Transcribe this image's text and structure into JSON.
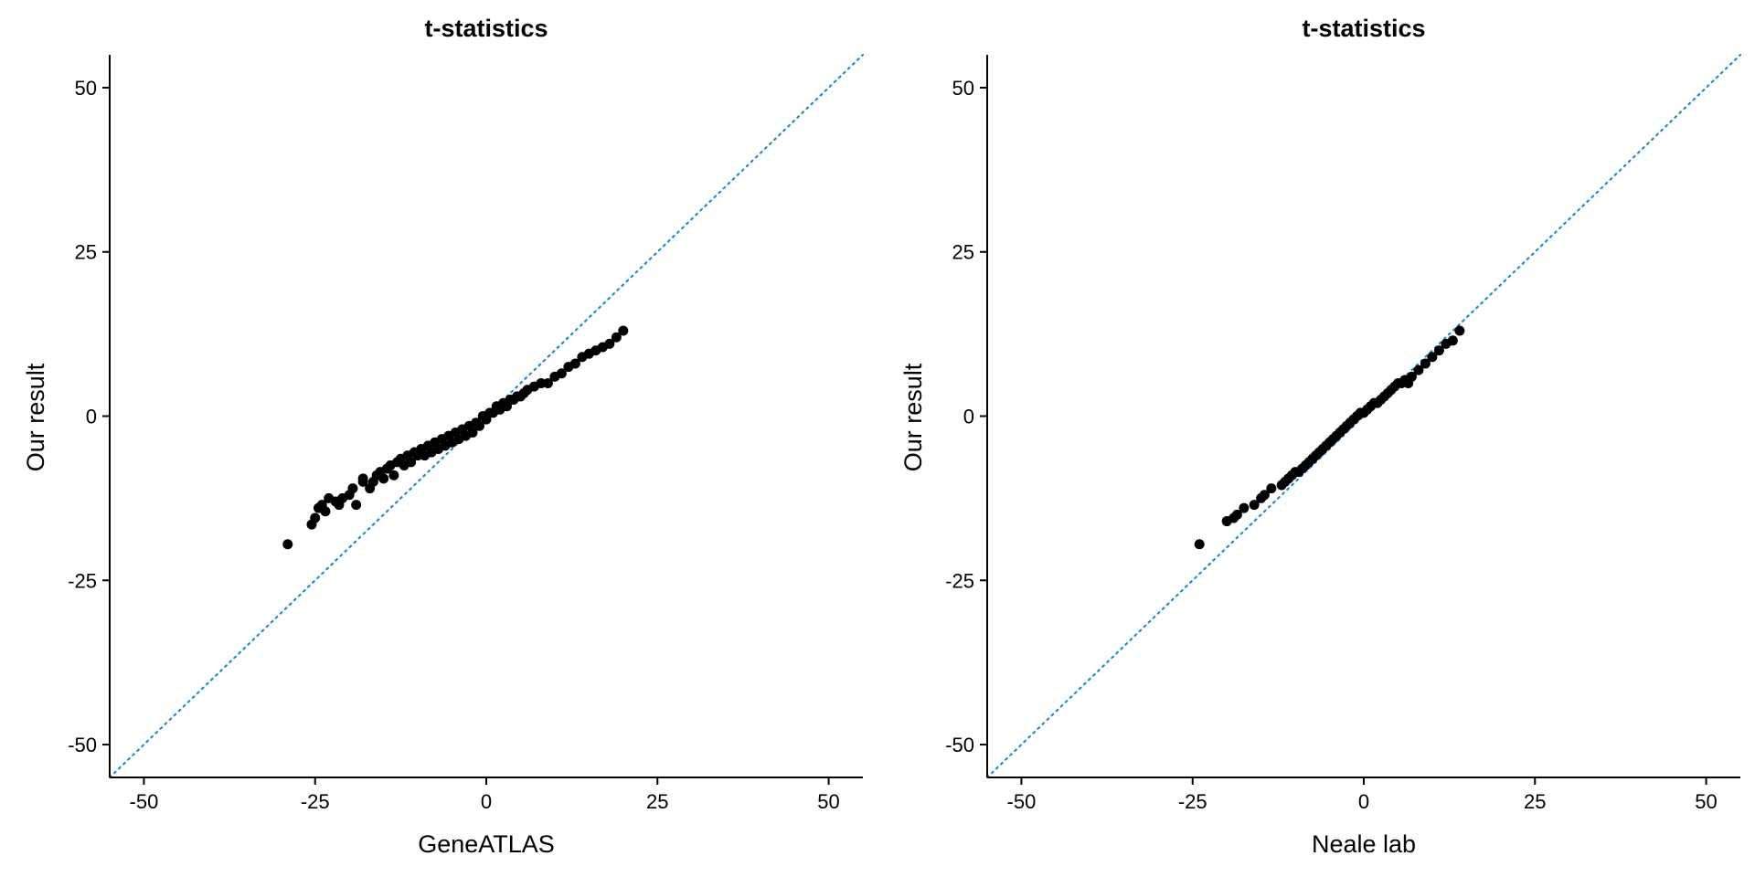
{
  "chart_data": [
    {
      "type": "scatter",
      "title": "t-statistics",
      "xlabel": "GeneATLAS",
      "ylabel": "Our result",
      "xlim": [
        -55,
        55
      ],
      "ylim": [
        -55,
        55
      ],
      "x_ticks": [
        -50,
        -25,
        0,
        25,
        50
      ],
      "y_ticks": [
        -50,
        -25,
        0,
        25,
        50
      ],
      "x_tick_labels": [
        "-50",
        "-25",
        "0",
        "25",
        "50"
      ],
      "y_tick_labels": [
        "-50",
        "-25",
        "0",
        "25",
        "50"
      ],
      "grid": false,
      "reference_line": {
        "slope": 1,
        "intercept": 0,
        "style": "dotted",
        "color": "#1E88E5"
      },
      "point_color": "#000000",
      "x": [
        -29.0,
        -25.5,
        -25,
        -24.5,
        -24,
        -23.5,
        -23,
        -22,
        -21.5,
        -21,
        -20,
        -19.5,
        -19,
        -18,
        -18,
        -17,
        -16.5,
        -16,
        -15.5,
        -15,
        -14.5,
        -14,
        -13.5,
        -13,
        -12.5,
        -12,
        -11.5,
        -11,
        -10.5,
        -10,
        -9.5,
        -9,
        -8.5,
        -8,
        -7.5,
        -7,
        -6.5,
        -6,
        -5.5,
        -5,
        -4.5,
        -4,
        -3.5,
        -3,
        -2.5,
        -2,
        -1.5,
        -1,
        -0.5,
        0,
        0.5,
        1,
        1.5,
        2,
        2.5,
        3,
        3.5,
        4,
        4.5,
        5,
        5.5,
        6,
        7,
        8,
        9,
        10,
        11,
        12,
        13,
        14,
        15,
        16,
        17,
        18,
        19,
        20
      ],
      "y": [
        -19.5,
        -16.5,
        -15.5,
        -14,
        -13.5,
        -14.5,
        -12.5,
        -13,
        -13.5,
        -12.5,
        -12,
        -11,
        -13.5,
        -10,
        -9.5,
        -11,
        -10,
        -9,
        -8.5,
        -9.5,
        -8,
        -7.5,
        -9,
        -7,
        -6.5,
        -7.5,
        -6,
        -7,
        -5.5,
        -6,
        -5,
        -6,
        -4.5,
        -5.5,
        -4,
        -5,
        -3.5,
        -4.5,
        -3,
        -4,
        -2.5,
        -3.5,
        -2,
        -3,
        -1.5,
        -2.5,
        -1,
        -1.5,
        0,
        -0.5,
        0.5,
        0.5,
        1.5,
        1,
        2,
        1.5,
        2.5,
        2.5,
        3,
        3,
        3.5,
        4,
        4.5,
        5,
        5,
        6,
        6.5,
        7.5,
        8,
        9,
        9.5,
        10,
        10.5,
        11,
        12,
        13
      ]
    },
    {
      "type": "scatter",
      "title": "t-statistics",
      "xlabel": "Neale lab",
      "ylabel": "Our result",
      "xlim": [
        -55,
        55
      ],
      "ylim": [
        -55,
        55
      ],
      "x_ticks": [
        -50,
        -25,
        0,
        25,
        50
      ],
      "y_ticks": [
        -50,
        -25,
        0,
        25,
        50
      ],
      "x_tick_labels": [
        "-50",
        "-25",
        "0",
        "25",
        "50"
      ],
      "y_tick_labels": [
        "-50",
        "-25",
        "0",
        "25",
        "50"
      ],
      "grid": false,
      "reference_line": {
        "slope": 1,
        "intercept": 0,
        "style": "dotted",
        "color": "#1E88E5"
      },
      "point_color": "#000000",
      "x": [
        -24,
        -20,
        -19,
        -18.5,
        -17.5,
        -16,
        -15,
        -14.5,
        -13.5,
        -12,
        -11.5,
        -11,
        -10.5,
        -10,
        -9.5,
        -9,
        -8.5,
        -8,
        -7.5,
        -7,
        -6.5,
        -6,
        -5.5,
        -5,
        -4.5,
        -4,
        -3.5,
        -3,
        -2.5,
        -2,
        -1.5,
        -1,
        -0.5,
        0,
        0.5,
        1,
        1.5,
        2,
        2.5,
        3,
        3.5,
        4,
        4.5,
        5,
        5.5,
        6,
        6.5,
        7,
        8,
        9,
        10,
        11,
        12,
        13,
        14
      ],
      "y": [
        -19.5,
        -16,
        -15.5,
        -15,
        -14,
        -13.5,
        -12.5,
        -12,
        -11,
        -10.5,
        -10,
        -9.5,
        -9,
        -8.5,
        -8.5,
        -8,
        -7.5,
        -7,
        -6.5,
        -6,
        -5.5,
        -5,
        -4.5,
        -4,
        -3.5,
        -3,
        -2.5,
        -2,
        -1.5,
        -1,
        -0.5,
        0,
        0.5,
        0.5,
        1,
        1.5,
        2,
        2,
        2.5,
        3,
        3.5,
        4,
        4.5,
        5,
        5,
        5.5,
        5,
        6,
        7,
        8,
        9,
        10,
        11,
        11.5,
        13
      ]
    }
  ]
}
